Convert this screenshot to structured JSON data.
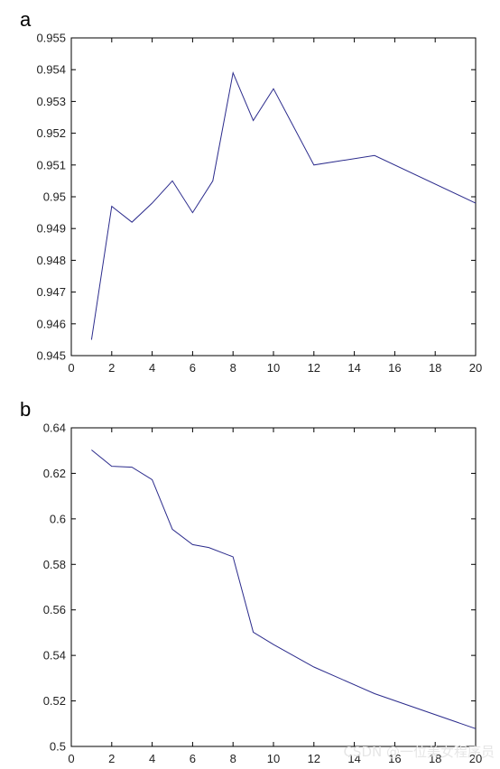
{
  "chart_data": [
    {
      "type": "line",
      "panel_label": "a",
      "x": [
        1,
        2,
        3,
        4,
        5,
        6,
        7,
        8,
        9,
        10,
        12,
        15,
        20
      ],
      "values": [
        0.9455,
        0.9497,
        0.9492,
        0.9498,
        0.9505,
        0.9495,
        0.9505,
        0.9539,
        0.9524,
        0.9534,
        0.951,
        0.9513,
        0.9498
      ],
      "xlim": [
        0,
        20
      ],
      "ylim": [
        0.945,
        0.955
      ],
      "xticks": [
        0,
        2,
        4,
        6,
        8,
        10,
        12,
        14,
        16,
        18,
        20
      ],
      "xtick_labels": [
        "0",
        "2",
        "4",
        "6",
        "8",
        "10",
        "12",
        "14",
        "16",
        "18",
        "20"
      ],
      "yticks": [
        0.945,
        0.946,
        0.947,
        0.948,
        0.949,
        0.95,
        0.951,
        0.952,
        0.953,
        0.954,
        0.955
      ],
      "ytick_labels": [
        "0.945",
        "0.946",
        "0.947",
        "0.948",
        "0.949",
        "0.95",
        "0.951",
        "0.952",
        "0.953",
        "0.954",
        "0.955"
      ],
      "grid": false,
      "color": "#2b2b8c"
    },
    {
      "type": "line",
      "panel_label": "b",
      "x": [
        1,
        2,
        3,
        4,
        5,
        6,
        6.8,
        8,
        9,
        10,
        12,
        15,
        20
      ],
      "values": [
        0.6303,
        0.6231,
        0.6227,
        0.6172,
        0.5954,
        0.5887,
        0.5874,
        0.5833,
        0.5502,
        0.5448,
        0.5349,
        0.5232,
        0.5078
      ],
      "xlim": [
        0,
        20
      ],
      "ylim": [
        0.5,
        0.64
      ],
      "xticks": [
        0,
        2,
        4,
        6,
        8,
        10,
        12,
        14,
        16,
        18,
        20
      ],
      "xtick_labels": [
        "0",
        "2",
        "4",
        "6",
        "8",
        "10",
        "12",
        "14",
        "16",
        "18",
        "20"
      ],
      "yticks": [
        0.5,
        0.52,
        0.54,
        0.56,
        0.58,
        0.6,
        0.62,
        0.64
      ],
      "ytick_labels": [
        "0.5",
        "0.52",
        "0.54",
        "0.56",
        "0.58",
        "0.6",
        "0.62",
        "0.64"
      ],
      "grid": false,
      "color": "#2b2b8c"
    }
  ],
  "watermark": "CSDN @一位美女程序员"
}
